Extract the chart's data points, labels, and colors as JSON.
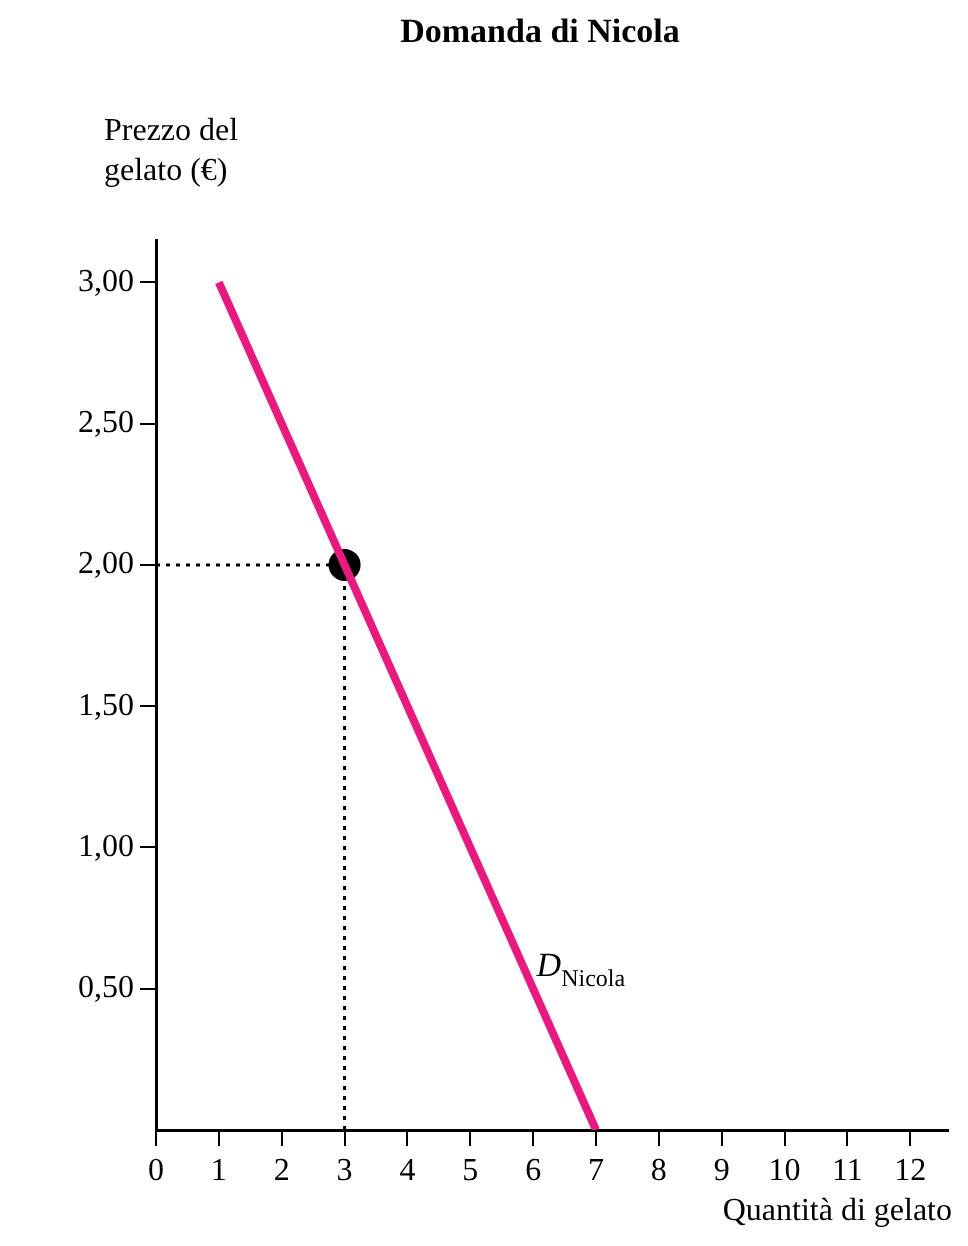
{
  "chart_data": {
    "type": "line",
    "title": "Domanda di Nicola",
    "xlabel": "Quantità di gelato",
    "ylabel": "Prezzo del gelato (€)",
    "xlim": [
      0,
      12.6
    ],
    "xticks": [
      0,
      1,
      2,
      3,
      4,
      5,
      6,
      7,
      8,
      9,
      10,
      11,
      12
    ],
    "ylim": [
      0,
      3.15
    ],
    "yticks": [
      {
        "value": 0.5,
        "label": "0,50"
      },
      {
        "value": 1,
        "label": "1,00"
      },
      {
        "value": 1.5,
        "label": "1,50"
      },
      {
        "value": 2,
        "label": "2,00"
      },
      {
        "value": 2.5,
        "label": "2,50"
      },
      {
        "value": 3,
        "label": "3,00"
      }
    ],
    "grid": false,
    "legend": false,
    "series": [
      {
        "name": "D$_{Nicola}$",
        "type": "line",
        "color": "#e8197f",
        "marker": "none",
        "x": [
          1,
          7
        ],
        "values": [
          3,
          0
        ]
      },
      {
        "type": "scatter",
        "color": "#000000",
        "marker": "circle",
        "x": [
          3
        ],
        "values": [
          2
        ]
      }
    ],
    "ref_lines": [
      {
        "axis": "y",
        "value": 2,
        "line_style": "dotted",
        "color": "#000000"
      },
      {
        "axis": "x",
        "value": 3,
        "line_style": "dotted",
        "color": "#000000"
      }
    ]
  }
}
